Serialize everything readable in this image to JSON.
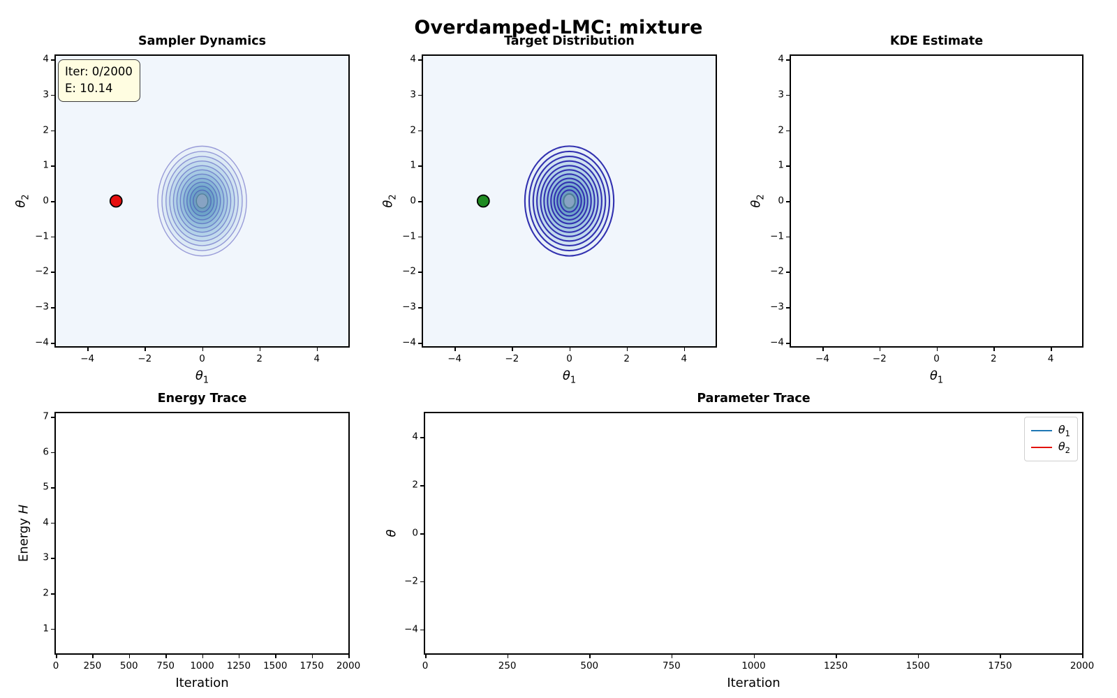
{
  "figure": {
    "suptitle": "Overdamped-LMC: mixture",
    "background": "#ffffff"
  },
  "chart_data": [
    {
      "id": "sampler-dynamics",
      "type": "contour",
      "title": "Sampler Dynamics",
      "xlabel": {
        "text": "θ",
        "sub": "1",
        "italic": true
      },
      "ylabel": {
        "text": "θ",
        "sub": "2",
        "italic": true
      },
      "xlim": [
        -5.1,
        5.1
      ],
      "ylim": [
        -4.1,
        4.1
      ],
      "xticks": [
        -4,
        -2,
        0,
        2,
        4
      ],
      "yticks": [
        -4,
        -3,
        -2,
        -1,
        0,
        1,
        2,
        3,
        4
      ],
      "plot_bg": "#f1f6fc",
      "contours": {
        "center": [
          0,
          0
        ],
        "radii": [
          1.55,
          1.4,
          1.26,
          1.13,
          1.0,
          0.88,
          0.76,
          0.64,
          0.53,
          0.42,
          0.31,
          0.2
        ],
        "fill_colors": [
          "#e9f1f9",
          "#dceaf5",
          "#cfe2f1",
          "#c1daed",
          "#b3d2e8",
          "#a5c9e3",
          "#97c0dd",
          "#88b6d6",
          "#7aadcf",
          "#6da3c8",
          "#6e9dc2",
          "#87a3c3"
        ],
        "line_color": "rgba(50,49,176,0.45)",
        "inner_line_color": "rgba(77,125,148,0.85)",
        "line_width": 1.4
      },
      "marker": {
        "x": -3,
        "y": 0,
        "fill": "#e60f0f",
        "edge": "#000000",
        "radius": 8.5
      },
      "annotation": {
        "lines": [
          "Iter: 0/2000",
          "E: 10.14"
        ],
        "bg": "#fffde1",
        "border": "#3a3a3a"
      }
    },
    {
      "id": "target-distribution",
      "type": "contour",
      "title": "Target Distribution",
      "xlabel": {
        "text": "θ",
        "sub": "1",
        "italic": true
      },
      "ylabel": {
        "text": "θ",
        "sub": "2",
        "italic": true
      },
      "xlim": [
        -5.1,
        5.1
      ],
      "ylim": [
        -4.1,
        4.1
      ],
      "xticks": [
        -4,
        -2,
        0,
        2,
        4
      ],
      "yticks": [
        -4,
        -3,
        -2,
        -1,
        0,
        1,
        2,
        3,
        4
      ],
      "plot_bg": "#f1f6fc",
      "contours": {
        "center": [
          0,
          0
        ],
        "radii": [
          1.55,
          1.4,
          1.26,
          1.13,
          1.0,
          0.88,
          0.76,
          0.64,
          0.53,
          0.42,
          0.31,
          0.2
        ],
        "fill_colors": [
          "#e9f1f9",
          "#dceaf5",
          "#cfe2f1",
          "#c1daed",
          "#b3d2e8",
          "#a5c9e3",
          "#97c0dd",
          "#88b6d6",
          "#7aadcf",
          "#6da3c8",
          "#6e9dc2",
          "#87a3c3"
        ],
        "line_color": "#3231b0",
        "inner_line_color": "#4d7d94",
        "line_width": 2.1
      },
      "marker": {
        "x": -3,
        "y": 0,
        "fill": "#1f8b22",
        "edge": "#000000",
        "radius": 8.5
      }
    },
    {
      "id": "kde-estimate",
      "type": "contour",
      "title": "KDE Estimate",
      "xlabel": {
        "text": "θ",
        "sub": "1",
        "italic": true
      },
      "ylabel": {
        "text": "θ",
        "sub": "2",
        "italic": true
      },
      "xlim": [
        -5.1,
        5.1
      ],
      "ylim": [
        -4.1,
        4.1
      ],
      "xticks": [
        -4,
        -2,
        0,
        2,
        4
      ],
      "yticks": [
        -4,
        -3,
        -2,
        -1,
        0,
        1,
        2,
        3,
        4
      ],
      "plot_bg": "#ffffff"
    },
    {
      "id": "energy-trace",
      "type": "line",
      "title": "Energy Trace",
      "xlabel": {
        "text": "Iteration"
      },
      "ylabel": {
        "prefix": "Energy ",
        "text": "H",
        "italic": true
      },
      "xlim": [
        0,
        2000
      ],
      "ylim": [
        0.3,
        7.1
      ],
      "xticks": [
        0,
        250,
        500,
        750,
        1000,
        1250,
        1500,
        1750,
        2000
      ],
      "yticks": [
        1,
        2,
        3,
        4,
        5,
        6,
        7
      ],
      "plot_bg": "#ffffff",
      "series": []
    },
    {
      "id": "parameter-trace",
      "type": "line",
      "title": "Parameter Trace",
      "xlabel": {
        "text": "Iteration"
      },
      "ylabel": {
        "text": "θ",
        "italic": true
      },
      "xlim": [
        0,
        2000
      ],
      "ylim": [
        -5,
        5
      ],
      "xticks": [
        0,
        250,
        500,
        750,
        1000,
        1250,
        1500,
        1750,
        2000
      ],
      "yticks": [
        -4,
        -2,
        0,
        2,
        4
      ],
      "plot_bg": "#ffffff",
      "series": [],
      "legend": [
        {
          "text": "θ",
          "sub": "1",
          "italic": true,
          "color": "#1f77b4"
        },
        {
          "text": "θ",
          "sub": "2",
          "italic": true,
          "color": "#e3120b"
        }
      ]
    }
  ]
}
